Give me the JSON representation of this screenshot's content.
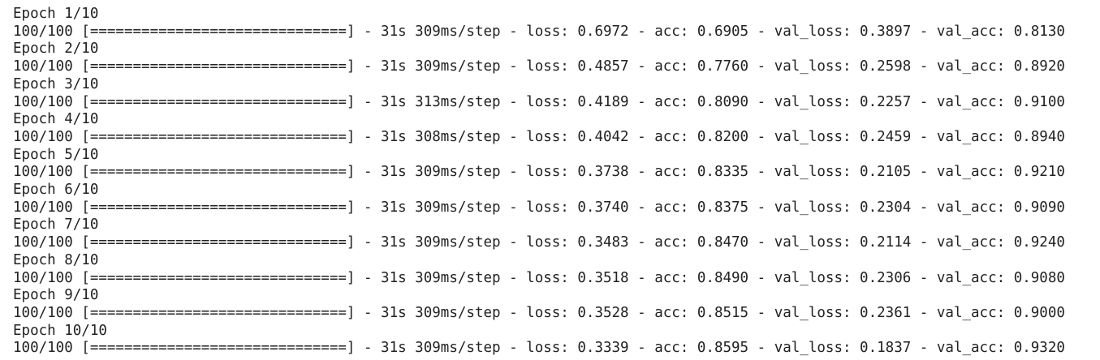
{
  "epochs": [
    {
      "header": "Epoch 1/10",
      "progress": "100/100 [==============================] - 31s 309ms/step - loss: 0.6972 - acc: 0.6905 - val_loss: 0.3897 - val_acc: 0.8130"
    },
    {
      "header": "Epoch 2/10",
      "progress": "100/100 [==============================] - 31s 309ms/step - loss: 0.4857 - acc: 0.7760 - val_loss: 0.2598 - val_acc: 0.8920"
    },
    {
      "header": "Epoch 3/10",
      "progress": "100/100 [==============================] - 31s 313ms/step - loss: 0.4189 - acc: 0.8090 - val_loss: 0.2257 - val_acc: 0.9100"
    },
    {
      "header": "Epoch 4/10",
      "progress": "100/100 [==============================] - 31s 308ms/step - loss: 0.4042 - acc: 0.8200 - val_loss: 0.2459 - val_acc: 0.8940"
    },
    {
      "header": "Epoch 5/10",
      "progress": "100/100 [==============================] - 31s 309ms/step - loss: 0.3738 - acc: 0.8335 - val_loss: 0.2105 - val_acc: 0.9210"
    },
    {
      "header": "Epoch 6/10",
      "progress": "100/100 [==============================] - 31s 309ms/step - loss: 0.3740 - acc: 0.8375 - val_loss: 0.2304 - val_acc: 0.9090"
    },
    {
      "header": "Epoch 7/10",
      "progress": "100/100 [==============================] - 31s 309ms/step - loss: 0.3483 - acc: 0.8470 - val_loss: 0.2114 - val_acc: 0.9240"
    },
    {
      "header": "Epoch 8/10",
      "progress": "100/100 [==============================] - 31s 309ms/step - loss: 0.3518 - acc: 0.8490 - val_loss: 0.2306 - val_acc: 0.9080"
    },
    {
      "header": "Epoch 9/10",
      "progress": "100/100 [==============================] - 31s 309ms/step - loss: 0.3528 - acc: 0.8515 - val_loss: 0.2361 - val_acc: 0.9000"
    },
    {
      "header": "Epoch 10/10",
      "progress": "100/100 [==============================] - 31s 309ms/step - loss: 0.3339 - acc: 0.8595 - val_loss: 0.1837 - val_acc: 0.9320"
    }
  ]
}
